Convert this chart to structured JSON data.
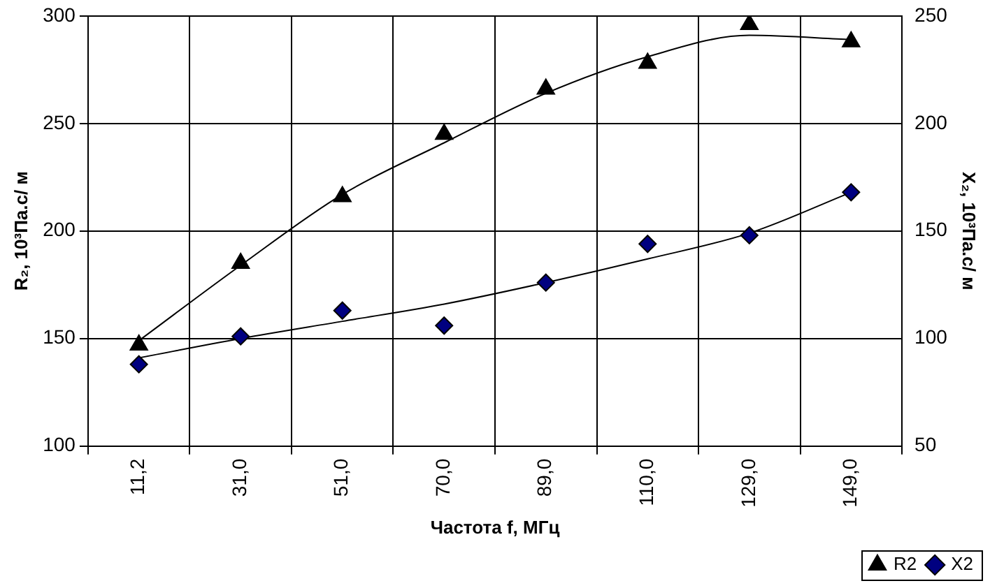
{
  "chart_data": {
    "type": "scatter",
    "xlabel": "Частота f, МГц",
    "ylabel": "R₂, 10³Па.с/ м",
    "y2label": "X₂, 10³Па.с/ м",
    "categories": [
      "11,2",
      "31,0",
      "51,0",
      "70,0",
      "89,0",
      "110,0",
      "129,0",
      "149,0"
    ],
    "series": [
      {
        "name": "R2",
        "marker": "triangle",
        "color": "#000000",
        "values": [
          147,
          185,
          216,
          245,
          266,
          278,
          296,
          288
        ]
      },
      {
        "name": "X2",
        "marker": "diamond",
        "color": "#000080",
        "axis": "y2",
        "values": [
          88,
          101,
          113,
          106,
          126,
          144,
          148,
          168
        ]
      },
      {
        "type": "line",
        "marker": "none",
        "color": "#000000",
        "values": [
          149,
          184,
          217,
          241,
          264,
          281,
          291,
          289
        ]
      },
      {
        "type": "line",
        "marker": "none",
        "color": "#000000",
        "axis": "y2",
        "values": [
          91,
          100,
          108,
          116,
          126,
          137,
          149,
          168
        ]
      }
    ],
    "ylim": [
      100,
      300
    ],
    "yticks": [
      100,
      150,
      200,
      250,
      300
    ],
    "y2lim": [
      50,
      250
    ],
    "y2ticks": [
      50,
      100,
      150,
      200,
      250
    ],
    "grid": true,
    "legend": "bottom right"
  }
}
